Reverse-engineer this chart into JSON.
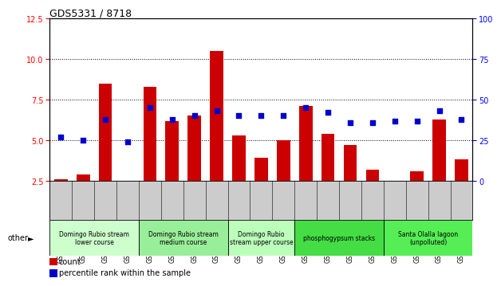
{
  "title": "GDS5331 / 8718",
  "samples": [
    "GSM832445",
    "GSM832446",
    "GSM832447",
    "GSM832448",
    "GSM832449",
    "GSM832450",
    "GSM832451",
    "GSM832452",
    "GSM832453",
    "GSM832454",
    "GSM832455",
    "GSM832441",
    "GSM832442",
    "GSM832443",
    "GSM832444",
    "GSM832437",
    "GSM832438",
    "GSM832439",
    "GSM832440"
  ],
  "count_values": [
    2.6,
    2.9,
    8.5,
    2.5,
    8.3,
    6.2,
    6.5,
    10.5,
    5.3,
    3.9,
    5.0,
    7.1,
    5.4,
    4.7,
    3.2,
    2.5,
    3.1,
    6.3,
    3.8
  ],
  "percentile_values": [
    27,
    25,
    38,
    24,
    45,
    38,
    40,
    43,
    40,
    40,
    40,
    45,
    42,
    36,
    36,
    37,
    37,
    43,
    38
  ],
  "ylim_left": [
    2.5,
    12.5
  ],
  "ylim_right": [
    0,
    100
  ],
  "yticks_left": [
    2.5,
    5.0,
    7.5,
    10.0,
    12.5
  ],
  "yticks_right": [
    0,
    25,
    50,
    75,
    100
  ],
  "groups": [
    {
      "label": "Domingo Rubio stream\nlower course",
      "start": 0,
      "end": 4,
      "color": "#ccffcc"
    },
    {
      "label": "Domingo Rubio stream\nmedium course",
      "start": 4,
      "end": 8,
      "color": "#99ee99"
    },
    {
      "label": "Domingo Rubio\nstream upper course",
      "start": 8,
      "end": 11,
      "color": "#bbffbb"
    },
    {
      "label": "phosphogypsum stacks",
      "start": 11,
      "end": 15,
      "color": "#44dd44"
    },
    {
      "label": "Santa Olalla lagoon\n(unpolluted)",
      "start": 15,
      "end": 19,
      "color": "#55ee55"
    }
  ],
  "bar_color": "#cc0000",
  "dot_color": "#0000cc",
  "background_color": "#ffffff",
  "tick_area_color": "#cccccc",
  "fig_width": 6.31,
  "fig_height": 3.54,
  "dpi": 100
}
